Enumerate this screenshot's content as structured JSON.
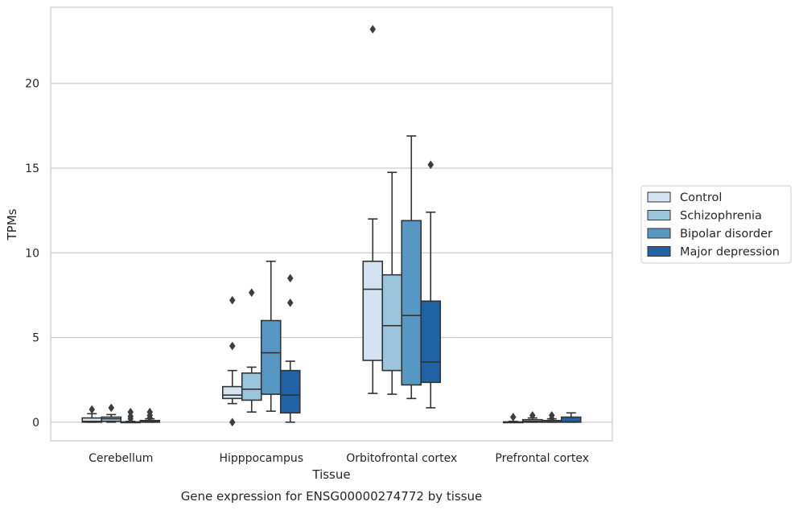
{
  "chart_data": {
    "type": "box",
    "title": "",
    "caption": "Gene expression for ENSG00000274772 by tissue",
    "xlabel": "Tissue",
    "ylabel": "TPMs",
    "ylim": [
      -1.1,
      24.5
    ],
    "yticks": [
      0,
      5,
      10,
      15,
      20
    ],
    "grid": "horizontal",
    "legend_position": "right",
    "categories": [
      "Cerebellum",
      "Hipppocampus",
      "Orbitofrontal cortex",
      "Prefrontal cortex"
    ],
    "series": [
      {
        "name": "Control",
        "color": "#d4e3f1",
        "boxes": [
          {
            "min": 0.0,
            "q1": 0.0,
            "median": 0.05,
            "q3": 0.25,
            "max": 0.5,
            "outliers": [
              0.75
            ]
          },
          {
            "min": 1.1,
            "q1": 1.4,
            "median": 1.6,
            "q3": 2.1,
            "max": 3.05,
            "outliers": [
              7.2,
              4.5,
              0.0
            ]
          },
          {
            "min": 1.7,
            "q1": 3.65,
            "median": 7.85,
            "q3": 9.5,
            "max": 12.0,
            "outliers": [
              23.2
            ]
          },
          {
            "min": 0.0,
            "q1": 0.0,
            "median": 0.0,
            "q3": 0.02,
            "max": 0.05,
            "outliers": [
              0.3
            ]
          }
        ]
      },
      {
        "name": "Schizophrenia",
        "color": "#9ac5dd",
        "boxes": [
          {
            "min": 0.0,
            "q1": 0.05,
            "median": 0.2,
            "q3": 0.3,
            "max": 0.45,
            "outliers": [
              0.85
            ]
          },
          {
            "min": 0.6,
            "q1": 1.3,
            "median": 1.95,
            "q3": 2.9,
            "max": 3.25,
            "outliers": [
              7.65
            ]
          },
          {
            "min": 1.65,
            "q1": 3.05,
            "median": 5.7,
            "q3": 8.7,
            "max": 14.75,
            "outliers": []
          },
          {
            "min": 0.0,
            "q1": 0.0,
            "median": 0.05,
            "q3": 0.15,
            "max": 0.25,
            "outliers": [
              0.4
            ]
          }
        ]
      },
      {
        "name": "Bipolar disorder",
        "color": "#5797c4",
        "boxes": [
          {
            "min": 0.0,
            "q1": 0.0,
            "median": 0.0,
            "q3": 0.02,
            "max": 0.05,
            "outliers": [
              0.6,
              0.35,
              0.2
            ]
          },
          {
            "min": 0.65,
            "q1": 1.65,
            "median": 4.1,
            "q3": 6.0,
            "max": 9.5,
            "outliers": []
          },
          {
            "min": 1.4,
            "q1": 2.2,
            "median": 6.3,
            "q3": 11.9,
            "max": 16.9,
            "outliers": []
          },
          {
            "min": 0.0,
            "q1": 0.0,
            "median": 0.02,
            "q3": 0.1,
            "max": 0.2,
            "outliers": [
              0.4,
              0.2
            ]
          }
        ]
      },
      {
        "name": "Major depression",
        "color": "#1f62a6",
        "boxes": [
          {
            "min": 0.0,
            "q1": 0.0,
            "median": 0.05,
            "q3": 0.1,
            "max": 0.2,
            "outliers": [
              0.6,
              0.4,
              0.25
            ]
          },
          {
            "min": 0.0,
            "q1": 0.55,
            "median": 1.6,
            "q3": 3.05,
            "max": 3.6,
            "outliers": [
              8.5,
              7.05
            ]
          },
          {
            "min": 0.85,
            "q1": 2.35,
            "median": 3.55,
            "q3": 7.15,
            "max": 12.4,
            "outliers": [
              15.2
            ]
          },
          {
            "min": 0.0,
            "q1": 0.0,
            "median": 0.02,
            "q3": 0.3,
            "max": 0.55,
            "outliers": []
          }
        ]
      }
    ]
  }
}
